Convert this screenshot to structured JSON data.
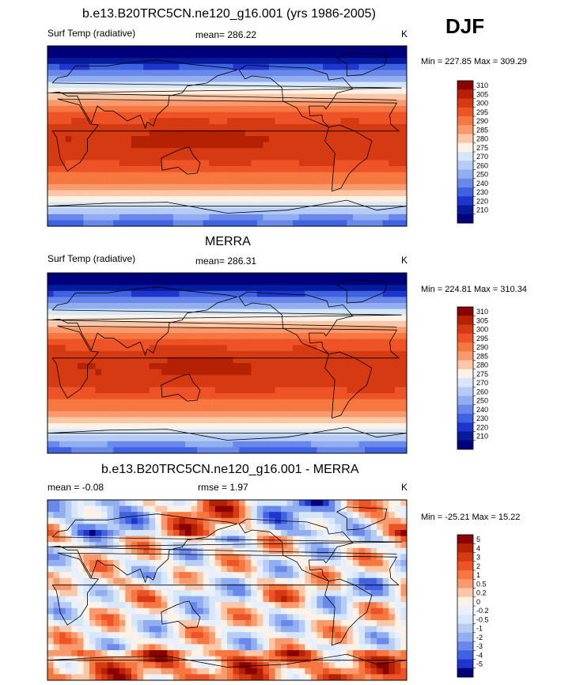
{
  "season": "DJF",
  "units": "K",
  "chart_data": [
    {
      "type": "heatmap",
      "title": "b.e13.B20TRC5CN.ne120_g16.001 (yrs 1986-2005)",
      "variable": "Surf Temp (radiative)",
      "stat_text": "mean= 286.22",
      "mean": 286.22,
      "units": "K",
      "min": 227.85,
      "max": 309.29,
      "minmax_text": "Min = 227.85 Max = 309.29",
      "colorbar_levels": [
        "310",
        "305",
        "300",
        "295",
        "290",
        "285",
        "280",
        "275",
        "270",
        "260",
        "250",
        "240",
        "230",
        "220",
        "210"
      ],
      "colorbar_colors": [
        "#8b0000",
        "#b42203",
        "#d63a12",
        "#ee5327",
        "#f6773f",
        "#f99a6e",
        "#fcc7a6",
        "#fef2e6",
        "#d6e6fb",
        "#b6ccf5",
        "#90aef0",
        "#6a88ea",
        "#3f62e2",
        "#1e36ce",
        "#061b9c",
        "#00007a"
      ],
      "cmin": 210,
      "cmax": 310,
      "climate": "model"
    },
    {
      "type": "heatmap",
      "title": "MERRA",
      "variable": "Surf Temp (radiative)",
      "stat_text": "mean= 286.31",
      "mean": 286.31,
      "units": "K",
      "min": 224.81,
      "max": 310.34,
      "minmax_text": "Min = 224.81 Max = 310.34",
      "colorbar_levels": [
        "310",
        "305",
        "300",
        "295",
        "290",
        "285",
        "280",
        "275",
        "270",
        "260",
        "250",
        "240",
        "230",
        "220",
        "210"
      ],
      "colorbar_colors": [
        "#8b0000",
        "#b42203",
        "#d63a12",
        "#ee5327",
        "#f6773f",
        "#f99a6e",
        "#fcc7a6",
        "#fef2e6",
        "#d6e6fb",
        "#b6ccf5",
        "#90aef0",
        "#6a88ea",
        "#3f62e2",
        "#1e36ce",
        "#061b9c",
        "#00007a"
      ],
      "cmin": 210,
      "cmax": 310,
      "climate": "obs"
    },
    {
      "type": "heatmap",
      "title": "b.e13.B20TRC5CN.ne120_g16.001 - MERRA",
      "variable": "mean =  -0.08",
      "stat_text": "rmse =   1.97",
      "mean": -0.08,
      "rmse": 1.97,
      "units": "K",
      "min": -25.21,
      "max": 15.22,
      "minmax_text": "Min = -25.21 Max =  15.22",
      "colorbar_levels": [
        "5",
        "4",
        "3",
        "2",
        "1",
        "0.5",
        "0.2",
        "0",
        "-0.2",
        "-0.5",
        "-1",
        "-2",
        "-3",
        "-4",
        "-5"
      ],
      "colorbar_colors": [
        "#8b0000",
        "#b42203",
        "#d63a12",
        "#ee5327",
        "#f6773f",
        "#f99a6e",
        "#fcc7a6",
        "#fef2e6",
        "#e9f0fd",
        "#d6e6fb",
        "#b6ccf5",
        "#90aef0",
        "#6a88ea",
        "#3f62e2",
        "#1e36ce",
        "#00007a"
      ],
      "cmin": -5,
      "cmax": 5,
      "climate": "diff"
    }
  ]
}
